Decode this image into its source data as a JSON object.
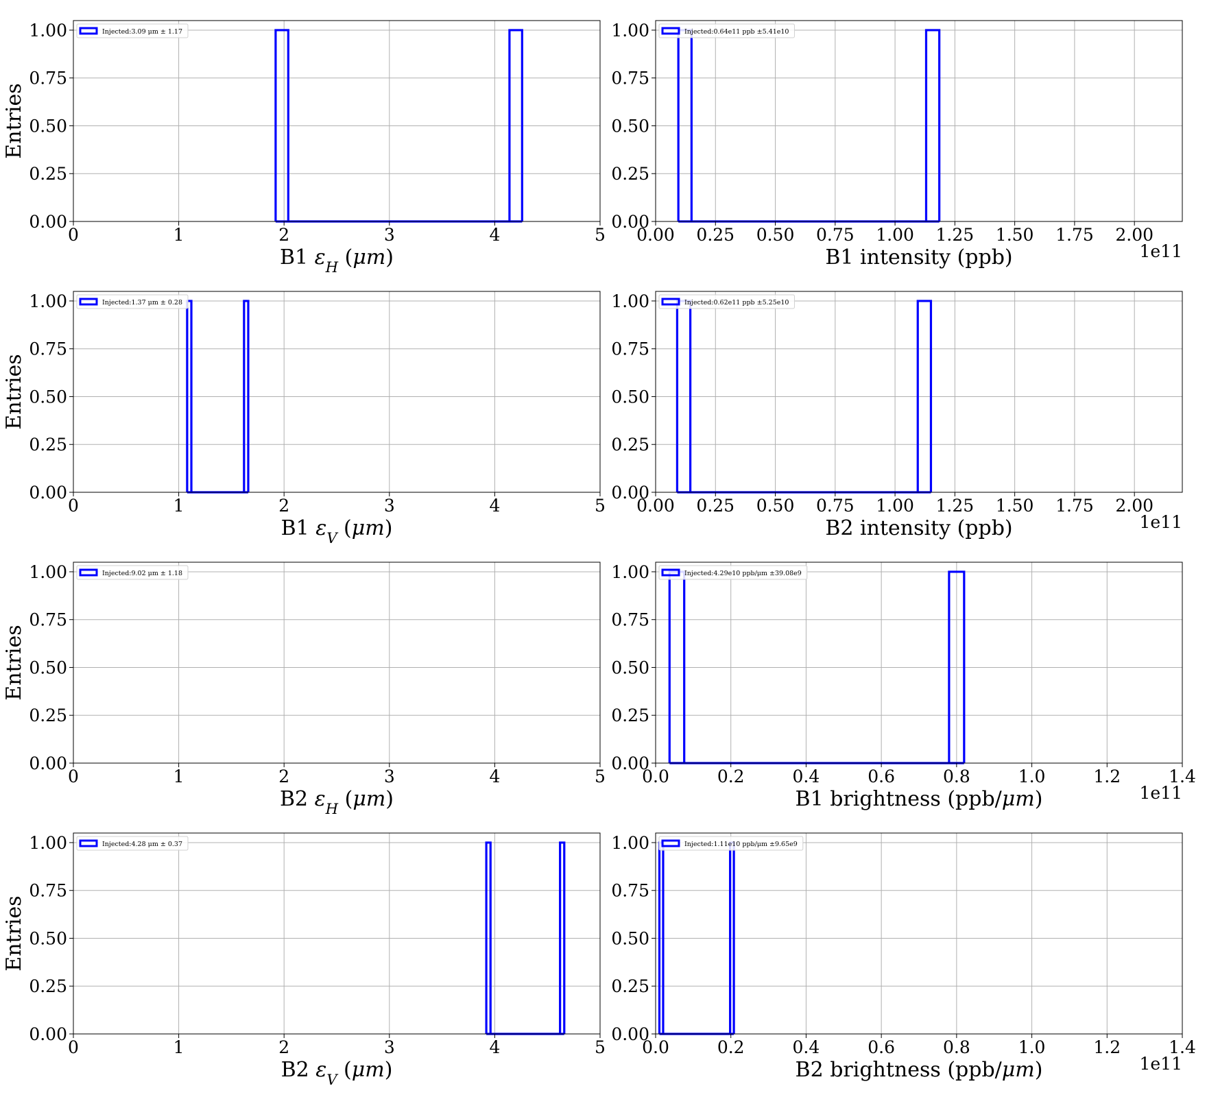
{
  "chart_data": [
    {
      "type": "histogram",
      "ylabel": "Entries",
      "xlabel": "B1 ε_H (μm)",
      "xlabel_parts": [
        "B1 ",
        "ε",
        "H",
        " (",
        "μm",
        ")"
      ],
      "offset_text": "",
      "xlim": [
        0,
        5
      ],
      "ylim": [
        0,
        1.05
      ],
      "x_ticks": [
        0,
        1,
        2,
        3,
        4,
        5
      ],
      "x_tick_labels": [
        "0",
        "1",
        "2",
        "3",
        "4",
        "5"
      ],
      "y_ticks": [
        0,
        0.25,
        0.5,
        0.75,
        1.0
      ],
      "y_tick_labels": [
        "0.00",
        "0.25",
        "0.50",
        "0.75",
        "1.00"
      ],
      "grid": true,
      "legend": {
        "label": "Injected:3.09 μm ± 1.17",
        "location": "upper-left"
      },
      "series": [
        {
          "bins": [
            [
              1.92,
              2.04,
              1
            ],
            [
              4.14,
              4.26,
              1
            ]
          ],
          "baseline": [
            1.92,
            4.26
          ],
          "color": "#0000ff"
        }
      ]
    },
    {
      "type": "histogram",
      "ylabel": "",
      "xlabel": "B1 intensity (ppb)",
      "xlabel_parts": [
        "B1 intensity (ppb)"
      ],
      "offset_text": "1e11",
      "xlim": [
        0,
        2.2
      ],
      "ylim": [
        0,
        1.05
      ],
      "x_ticks": [
        0,
        0.25,
        0.5,
        0.75,
        1.0,
        1.25,
        1.5,
        1.75,
        2.0
      ],
      "x_tick_labels": [
        "0.00",
        "0.25",
        "0.50",
        "0.75",
        "1.00",
        "1.25",
        "1.50",
        "1.75",
        "2.00"
      ],
      "y_ticks": [
        0,
        0.25,
        0.5,
        0.75,
        1.0
      ],
      "y_tick_labels": [
        "0.00",
        "0.25",
        "0.50",
        "0.75",
        "1.00"
      ],
      "grid": true,
      "legend": {
        "label": "Injected:0.64e11 ppb ±5.41e10",
        "location": "upper-left"
      },
      "series": [
        {
          "bins": [
            [
              0.095,
              0.15,
              1
            ],
            [
              1.13,
              1.185,
              1
            ]
          ],
          "baseline": [
            0.095,
            1.185
          ],
          "color": "#0000ff"
        }
      ]
    },
    {
      "type": "histogram",
      "ylabel": "Entries",
      "xlabel": "B1 ε_V (μm)",
      "xlabel_parts": [
        "B1 ",
        "ε",
        "V",
        " (",
        "μm",
        ")"
      ],
      "offset_text": "",
      "xlim": [
        0,
        5
      ],
      "ylim": [
        0,
        1.05
      ],
      "x_ticks": [
        0,
        1,
        2,
        3,
        4,
        5
      ],
      "x_tick_labels": [
        "0",
        "1",
        "2",
        "3",
        "4",
        "5"
      ],
      "y_ticks": [
        0,
        0.25,
        0.5,
        0.75,
        1.0
      ],
      "y_tick_labels": [
        "0.00",
        "0.25",
        "0.50",
        "0.75",
        "1.00"
      ],
      "grid": true,
      "legend": {
        "label": "Injected:1.37 μm ± 0.28",
        "location": "upper-left"
      },
      "series": [
        {
          "bins": [
            [
              1.08,
              1.12,
              1
            ],
            [
              1.62,
              1.66,
              1
            ]
          ],
          "baseline": [
            1.08,
            1.66
          ],
          "color": "#0000ff"
        }
      ]
    },
    {
      "type": "histogram",
      "ylabel": "",
      "xlabel": "B2 intensity (ppb)",
      "xlabel_parts": [
        "B2 intensity (ppb)"
      ],
      "offset_text": "1e11",
      "xlim": [
        0,
        2.2
      ],
      "ylim": [
        0,
        1.05
      ],
      "x_ticks": [
        0,
        0.25,
        0.5,
        0.75,
        1.0,
        1.25,
        1.5,
        1.75,
        2.0
      ],
      "x_tick_labels": [
        "0.00",
        "0.25",
        "0.50",
        "0.75",
        "1.00",
        "1.25",
        "1.50",
        "1.75",
        "2.00"
      ],
      "y_ticks": [
        0,
        0.25,
        0.5,
        0.75,
        1.0
      ],
      "y_tick_labels": [
        "0.00",
        "0.25",
        "0.50",
        "0.75",
        "1.00"
      ],
      "grid": true,
      "legend": {
        "label": "Injected:0.62e11 ppb ±5.25e10",
        "location": "upper-left"
      },
      "series": [
        {
          "bins": [
            [
              0.09,
              0.145,
              1
            ],
            [
              1.095,
              1.15,
              1
            ]
          ],
          "baseline": [
            0.09,
            1.15
          ],
          "color": "#0000ff"
        }
      ]
    },
    {
      "type": "histogram",
      "ylabel": "Entries",
      "xlabel": "B2 ε_H (μm)",
      "xlabel_parts": [
        "B2 ",
        "ε",
        "H",
        " (",
        "μm",
        ")"
      ],
      "offset_text": "",
      "xlim": [
        0,
        5
      ],
      "ylim": [
        0,
        1.05
      ],
      "x_ticks": [
        0,
        1,
        2,
        3,
        4,
        5
      ],
      "x_tick_labels": [
        "0",
        "1",
        "2",
        "3",
        "4",
        "5"
      ],
      "y_ticks": [
        0,
        0.25,
        0.5,
        0.75,
        1.0
      ],
      "y_tick_labels": [
        "0.00",
        "0.25",
        "0.50",
        "0.75",
        "1.00"
      ],
      "grid": true,
      "legend": {
        "label": "Injected:9.02 μm ± 1.18",
        "location": "upper-left"
      },
      "series": [
        {
          "bins": [],
          "baseline": null,
          "color": "#0000ff"
        }
      ]
    },
    {
      "type": "histogram",
      "ylabel": "",
      "xlabel": "B1 brightness (ppb/μm)",
      "xlabel_parts": [
        "B1 brightness (ppb/",
        "μm",
        ")"
      ],
      "offset_text": "1e11",
      "xlim": [
        0,
        1.4
      ],
      "ylim": [
        0,
        1.05
      ],
      "x_ticks": [
        0,
        0.2,
        0.4,
        0.6,
        0.8,
        1.0,
        1.2,
        1.4
      ],
      "x_tick_labels": [
        "0.0",
        "0.2",
        "0.4",
        "0.6",
        "0.8",
        "1.0",
        "1.2",
        "1.4"
      ],
      "y_ticks": [
        0,
        0.25,
        0.5,
        0.75,
        1.0
      ],
      "y_tick_labels": [
        "0.00",
        "0.25",
        "0.50",
        "0.75",
        "1.00"
      ],
      "grid": true,
      "legend": {
        "label": "Injected:4.29e10 ppb/μm ±39.08e9",
        "location": "upper-left"
      },
      "series": [
        {
          "bins": [
            [
              0.037,
              0.076,
              1
            ],
            [
              0.78,
              0.82,
              1
            ]
          ],
          "baseline": [
            0.037,
            0.82
          ],
          "color": "#0000ff"
        }
      ]
    },
    {
      "type": "histogram",
      "ylabel": "Entries",
      "xlabel": "B2 ε_V (μm)",
      "xlabel_parts": [
        "B2 ",
        "ε",
        "V",
        " (",
        "μm",
        ")"
      ],
      "offset_text": "",
      "xlim": [
        0,
        5
      ],
      "ylim": [
        0,
        1.05
      ],
      "x_ticks": [
        0,
        1,
        2,
        3,
        4,
        5
      ],
      "x_tick_labels": [
        "0",
        "1",
        "2",
        "3",
        "4",
        "5"
      ],
      "y_ticks": [
        0,
        0.25,
        0.5,
        0.75,
        1.0
      ],
      "y_tick_labels": [
        "0.00",
        "0.25",
        "0.50",
        "0.75",
        "1.00"
      ],
      "grid": true,
      "legend": {
        "label": "Injected:4.28 μm ± 0.37",
        "location": "upper-left"
      },
      "series": [
        {
          "bins": [
            [
              3.92,
              3.96,
              1
            ],
            [
              4.62,
              4.66,
              1
            ]
          ],
          "baseline": [
            3.92,
            4.66
          ],
          "color": "#0000ff"
        }
      ]
    },
    {
      "type": "histogram",
      "ylabel": "",
      "xlabel": "B2 brightness (ppb/μm)",
      "xlabel_parts": [
        "B2 brightness (ppb/",
        "μm",
        ")"
      ],
      "offset_text": "1e11",
      "xlim": [
        0,
        1.4
      ],
      "ylim": [
        0,
        1.05
      ],
      "x_ticks": [
        0,
        0.2,
        0.4,
        0.6,
        0.8,
        1.0,
        1.2,
        1.4
      ],
      "x_tick_labels": [
        "0.0",
        "0.2",
        "0.4",
        "0.6",
        "0.8",
        "1.0",
        "1.2",
        "1.4"
      ],
      "y_ticks": [
        0,
        0.25,
        0.5,
        0.75,
        1.0
      ],
      "y_tick_labels": [
        "0.00",
        "0.25",
        "0.50",
        "0.75",
        "1.00"
      ],
      "grid": true,
      "legend": {
        "label": "Injected:1.11e10 ppb/μm ±9.65e9",
        "location": "upper-left"
      },
      "series": [
        {
          "bins": [
            [
              0.01,
              0.02,
              1
            ],
            [
              0.198,
              0.208,
              1
            ]
          ],
          "baseline": [
            0.01,
            0.208
          ],
          "color": "#0000ff"
        }
      ]
    }
  ]
}
